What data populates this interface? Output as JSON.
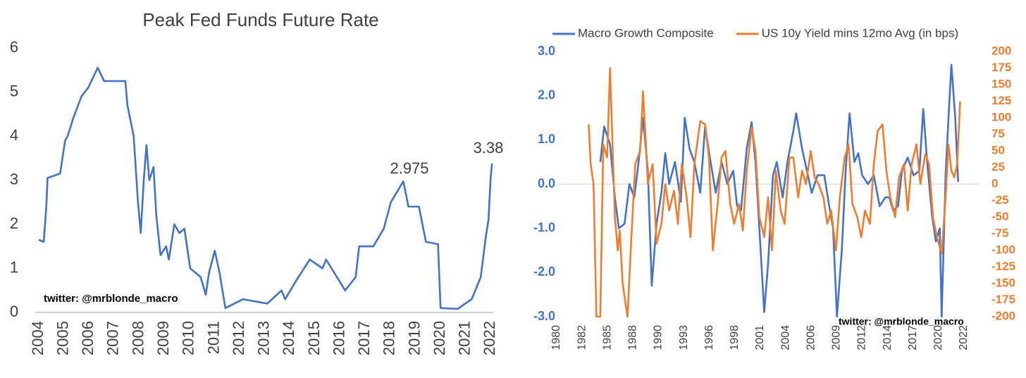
{
  "chart_data": [
    {
      "type": "line",
      "title": "Peak Fed Funds Future Rate",
      "x": [
        2004.0,
        2004.2,
        2004.3,
        2004.35,
        2004.85,
        2005.05,
        2005.15,
        2005.37,
        2005.7,
        2005.97,
        2006.35,
        2006.6,
        2007.45,
        2007.53,
        2007.78,
        2007.95,
        2008.06,
        2008.18,
        2008.29,
        2008.4,
        2008.57,
        2008.68,
        2008.85,
        2009.07,
        2009.18,
        2009.4,
        2009.6,
        2009.8,
        2010.03,
        2010.45,
        2010.65,
        2010.78,
        2011.01,
        2011.2,
        2011.43,
        2012.13,
        2013.1,
        2013.67,
        2013.81,
        2014.23,
        2014.79,
        2015.3,
        2015.44,
        2015.77,
        2016.2,
        2016.62,
        2016.76,
        2017.32,
        2017.74,
        2018.02,
        2018.52,
        2018.72,
        2019.14,
        2019.42,
        2019.9,
        2020.0,
        2020.68,
        2021.24,
        2021.6,
        2021.8,
        2021.91,
        2021.99,
        2022.05
      ],
      "values": [
        1.65,
        1.6,
        2.4,
        3.05,
        3.15,
        3.9,
        4.0,
        4.4,
        4.9,
        5.1,
        5.55,
        5.25,
        5.25,
        4.7,
        4.0,
        2.5,
        1.8,
        3.0,
        3.8,
        3.0,
        3.3,
        2.2,
        1.3,
        1.5,
        1.2,
        2.0,
        1.8,
        1.9,
        1.0,
        0.8,
        0.4,
        0.9,
        1.4,
        0.9,
        0.1,
        0.3,
        0.2,
        0.5,
        0.3,
        0.7,
        1.2,
        1.0,
        1.2,
        0.9,
        0.5,
        0.8,
        1.5,
        1.5,
        1.9,
        2.5,
        2.975,
        2.4,
        2.4,
        1.6,
        1.55,
        0.1,
        0.08,
        0.3,
        0.8,
        1.7,
        2.1,
        3.0,
        3.38
      ],
      "color": "#4472c4",
      "xlim": [
        2004,
        2022.1
      ],
      "xticks": [
        2004,
        2005,
        2006,
        2007,
        2008,
        2009,
        2010,
        2011,
        2012,
        2013,
        2014,
        2015,
        2016,
        2017,
        2018,
        2019,
        2020,
        2021,
        2022
      ],
      "ylim": [
        0,
        6
      ],
      "yticks": [
        0,
        1,
        2,
        3,
        4,
        5,
        6
      ],
      "annotations": [
        "2.975",
        "3.38",
        "twitter: @mrblonde_macro"
      ]
    },
    {
      "type": "line",
      "series": [
        {
          "name": "Macro Growth Composite",
          "color": "#4472c4",
          "x": [
            1984.5,
            1984.9,
            1985.5,
            1986.0,
            1986.4,
            1987.0,
            1987.5,
            1988.0,
            1988.5,
            1988.9,
            1989.4,
            1989.8,
            1990.3,
            1990.8,
            1991.2,
            1991.6,
            1992.2,
            1992.8,
            1993.2,
            1993.7,
            1994.2,
            1994.8,
            1995.3,
            1995.8,
            1996.4,
            1997.0,
            1997.6,
            1998.2,
            1998.6,
            1999.0,
            1999.6,
            2000.1,
            2000.5,
            2000.9,
            2001.4,
            2001.8,
            2002.3,
            2002.7,
            2003.3,
            2003.8,
            2004.4,
            2004.7,
            2005.3,
            2005.8,
            2006.3,
            2006.9,
            2007.6,
            2008.1,
            2008.5,
            2008.9,
            2009.4,
            2009.8,
            2010.2,
            2010.7,
            2011.1,
            2011.5,
            2012.1,
            2012.7,
            2013.3,
            2013.9,
            2014.3,
            2014.7,
            2015.2,
            2015.6,
            2016.2,
            2016.8,
            2017.4,
            2017.8,
            2018.2,
            2018.7,
            2019.1,
            2019.5,
            2019.7,
            2020.1,
            2020.4,
            2020.7,
            2021.1,
            2021.4
          ],
          "values": [
            0.5,
            1.3,
            0.9,
            -0.3,
            -1.0,
            -0.9,
            0.0,
            -0.3,
            0.6,
            1.5,
            0.3,
            -2.3,
            -0.9,
            -0.2,
            0.7,
            0.0,
            0.5,
            -0.4,
            1.5,
            0.8,
            0.5,
            -0.2,
            1.3,
            0.6,
            -0.2,
            0.5,
            0.0,
            0.3,
            -0.5,
            -0.6,
            0.8,
            1.4,
            0.5,
            -1.0,
            -2.9,
            -1.8,
            0.2,
            0.5,
            -0.3,
            0.5,
            1.2,
            1.6,
            0.8,
            0.3,
            -0.2,
            0.2,
            0.2,
            -0.5,
            -1.0,
            -3.0,
            -1.5,
            0.3,
            1.6,
            0.5,
            0.7,
            0.2,
            0.0,
            0.2,
            -0.5,
            -0.3,
            -0.3,
            -0.6,
            -0.5,
            0.3,
            0.6,
            0.2,
            0.3,
            1.7,
            0.5,
            -0.7,
            -1.3,
            -1.0,
            -3.0,
            0.2,
            1.5,
            2.7,
            1.5,
            0.05
          ]
        },
        {
          "name": "US 10y Yield mins 12mo Avg (in bps)",
          "color": "#ed7d31",
          "axis": "y2",
          "x": [
            1983.3,
            1983.5,
            1983.8,
            1984.1,
            1984.5,
            1984.8,
            1985.2,
            1985.5,
            1986.0,
            1986.3,
            1986.5,
            1986.8,
            1987.3,
            1987.7,
            1988.1,
            1988.6,
            1988.9,
            1989.2,
            1989.4,
            1989.9,
            1990.3,
            1990.8,
            1991.2,
            1991.6,
            1992.1,
            1992.5,
            1992.9,
            1993.4,
            1993.8,
            1994.2,
            1994.8,
            1995.3,
            1995.7,
            1996.1,
            1996.6,
            1997.0,
            1997.4,
            1997.9,
            1998.3,
            1998.8,
            1999.2,
            1999.6,
            2000.1,
            2000.5,
            2000.9,
            2001.4,
            2001.8,
            2002.2,
            2002.6,
            2003.1,
            2003.5,
            2004.0,
            2004.4,
            2004.9,
            2005.3,
            2005.7,
            2006.2,
            2006.6,
            2007.0,
            2007.5,
            2007.9,
            2008.3,
            2008.8,
            2009.2,
            2009.7,
            2010.1,
            2010.5,
            2011.0,
            2011.4,
            2011.8,
            2012.3,
            2012.7,
            2013.1,
            2013.6,
            2014.0,
            2014.4,
            2014.9,
            2015.3,
            2015.8,
            2016.2,
            2016.6,
            2017.1,
            2017.5,
            2018.0,
            2018.4,
            2018.8,
            2019.2,
            2019.7,
            2020.1,
            2020.4,
            2020.7,
            2021.0,
            2021.3,
            2021.6
          ],
          "values": [
            90,
            30,
            0,
            -200,
            -200,
            60,
            40,
            175,
            -50,
            -100,
            -70,
            -150,
            -200,
            -80,
            30,
            50,
            140,
            60,
            0,
            30,
            -90,
            -60,
            0,
            -40,
            -10,
            -60,
            30,
            -20,
            -80,
            30,
            95,
            90,
            40,
            -100,
            -30,
            40,
            50,
            -30,
            -60,
            -30,
            -70,
            20,
            85,
            50,
            -50,
            -80,
            -20,
            -100,
            20,
            -40,
            -60,
            40,
            40,
            -20,
            20,
            0,
            50,
            10,
            0,
            -20,
            -60,
            -40,
            -100,
            -20,
            40,
            60,
            -30,
            -50,
            -80,
            -40,
            -60,
            30,
            80,
            90,
            20,
            -20,
            -50,
            10,
            30,
            -40,
            30,
            60,
            0,
            45,
            30,
            -50,
            -80,
            -105,
            -20,
            60,
            20,
            10,
            30,
            125
          ]
        }
      ],
      "xlim": [
        1980,
        2022
      ],
      "xticks": [
        {
          "value": 1980,
          "label": "1980"
        },
        {
          "value": 1982.625,
          "label": "1982"
        },
        {
          "value": 1985.25,
          "label": "1985"
        },
        {
          "value": 1987.875,
          "label": "1988"
        },
        {
          "value": 1990.5,
          "label": "1990"
        },
        {
          "value": 1993.125,
          "label": "1993"
        },
        {
          "value": 1995.75,
          "label": "1996"
        },
        {
          "value": 1998.375,
          "label": "1998"
        },
        {
          "value": 2001,
          "label": "2001"
        },
        {
          "value": 2003.625,
          "label": "2004"
        },
        {
          "value": 2006.25,
          "label": "2006"
        },
        {
          "value": 2008.875,
          "label": "2009"
        },
        {
          "value": 2011.5,
          "label": "2012"
        },
        {
          "value": 2014.125,
          "label": "2014"
        },
        {
          "value": 2016.75,
          "label": "2017"
        },
        {
          "value": 2019.375,
          "label": "2020"
        },
        {
          "value": 2022,
          "label": "2022"
        }
      ],
      "ylim": [
        -3,
        3
      ],
      "yticks": [
        {
          "value": -3,
          "label": "-3.0"
        },
        {
          "value": -2,
          "label": "-2.0"
        },
        {
          "value": -1,
          "label": "-1.0"
        },
        {
          "value": 0,
          "label": "0.0"
        },
        {
          "value": 1,
          "label": "1.0"
        },
        {
          "value": 2,
          "label": "2.0"
        },
        {
          "value": 3,
          "label": "3.0"
        }
      ],
      "y2lim": [
        -200,
        200
      ],
      "y2ticks": [
        -200,
        -175,
        -150,
        -125,
        -100,
        -75,
        -50,
        -25,
        0,
        25,
        50,
        75,
        100,
        125,
        150,
        175,
        200
      ],
      "legend": "top",
      "annotations": [
        "twitter: @mrblonde_macro"
      ]
    }
  ]
}
